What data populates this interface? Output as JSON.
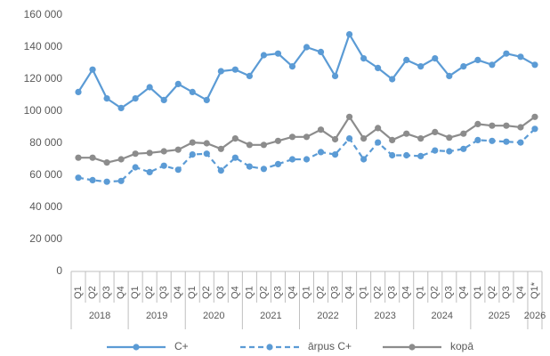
{
  "chart_data": {
    "type": "line",
    "categories": [
      "Q1",
      "Q2",
      "Q3",
      "Q4",
      "Q1",
      "Q2",
      "Q3",
      "Q4",
      "Q1",
      "Q2",
      "Q3",
      "Q4",
      "Q1",
      "Q2",
      "Q3",
      "Q4",
      "Q1",
      "Q2",
      "Q3",
      "Q4",
      "Q1",
      "Q2",
      "Q3",
      "Q4",
      "Q1",
      "Q2",
      "Q3",
      "Q4",
      "Q1",
      "Q2",
      "Q3",
      "Q4",
      "Q1*"
    ],
    "x_groups": [
      "2018",
      "2019",
      "2020",
      "2021",
      "2022",
      "2023",
      "2024",
      "2025",
      "2026"
    ],
    "series": [
      {
        "name": "C+",
        "color": "#5b9bd5",
        "dashed": false,
        "values": [
          112000,
          126000,
          108000,
          102000,
          108000,
          115000,
          107000,
          117000,
          112000,
          107000,
          125000,
          126000,
          122000,
          135000,
          136000,
          128000,
          140000,
          137000,
          122000,
          148000,
          133000,
          127000,
          120000,
          132000,
          128000,
          133000,
          122000,
          128000,
          132000,
          129000,
          136000,
          134000,
          129000
        ]
      },
      {
        "name": "ārpus C+",
        "color": "#5b9bd5",
        "dashed": true,
        "values": [
          58500,
          57000,
          56000,
          56500,
          65000,
          62000,
          66000,
          63500,
          73000,
          73500,
          63000,
          71000,
          65500,
          64000,
          67000,
          70000,
          70000,
          74500,
          73000,
          83000,
          70000,
          80500,
          72500,
          72500,
          72000,
          75500,
          75000,
          76500,
          82000,
          81500,
          81000,
          80500,
          89000
        ]
      },
      {
        "name": "kopā",
        "color": "#8c8c8c",
        "dashed": false,
        "values": [
          71000,
          71000,
          68000,
          70000,
          73500,
          74000,
          75000,
          76000,
          80500,
          80000,
          76500,
          83000,
          79000,
          79000,
          81500,
          84000,
          84000,
          88500,
          82500,
          96500,
          83000,
          89500,
          82000,
          86000,
          83000,
          87000,
          83500,
          86000,
          92000,
          91000,
          91000,
          90000,
          96500
        ]
      }
    ],
    "ylim": [
      0,
      160000
    ],
    "yticks": [
      0,
      {
        "value": 20000,
        "label": "20 000"
      },
      {
        "value": 40000,
        "label": "40 000"
      },
      {
        "value": 60000,
        "label": "60 000"
      },
      {
        "value": 80000,
        "label": "80 000"
      },
      {
        "value": 100000,
        "label": "100 000"
      },
      {
        "value": 120000,
        "label": "120 000"
      },
      {
        "value": 140000,
        "label": "140 000"
      },
      {
        "value": 160000,
        "label": "160 000"
      }
    ],
    "grid": false,
    "legend": "bottom"
  }
}
